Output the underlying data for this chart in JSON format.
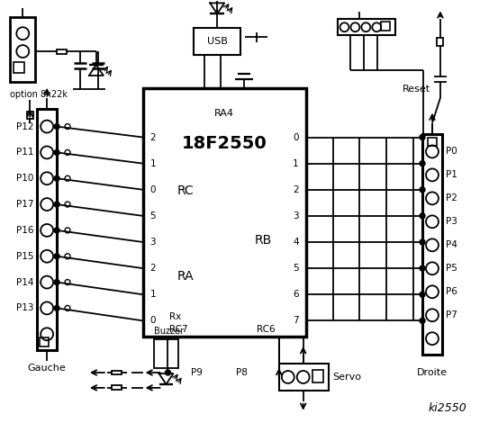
{
  "title": "ki2550",
  "bg_color": "#ffffff",
  "chip_label": "18F2550",
  "left_pins": [
    "P12",
    "P11",
    "P10",
    "P17",
    "P16",
    "P15",
    "P14",
    "P13"
  ],
  "right_pins": [
    "P0",
    "P1",
    "P2",
    "P3",
    "P4",
    "P5",
    "P6",
    "P7"
  ],
  "left_pin_nums": [
    "2",
    "1",
    "0",
    "5",
    "3",
    "2",
    "1",
    "0"
  ],
  "right_pin_nums": [
    "0",
    "1",
    "2",
    "3",
    "4",
    "5",
    "6",
    "7"
  ],
  "option_text": "option 8x22k",
  "reset_text": "Reset",
  "usb_text": "USB"
}
